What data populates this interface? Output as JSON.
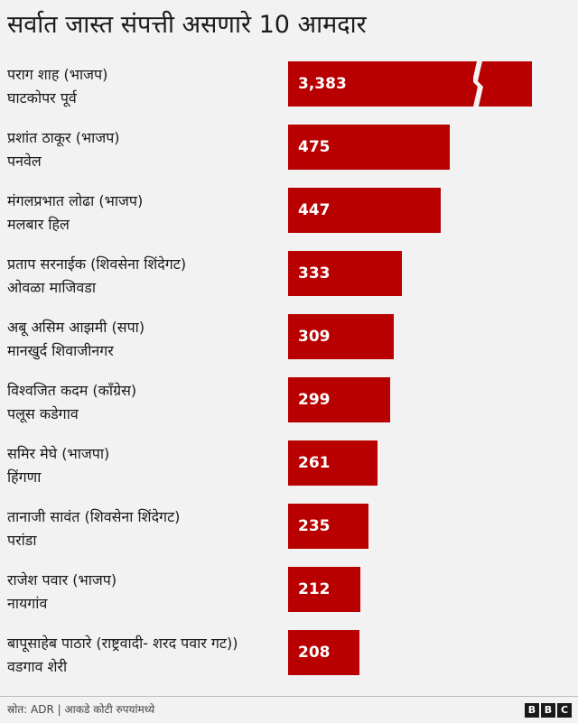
{
  "chart_data": {
    "type": "bar",
    "orientation": "horizontal",
    "title": "सर्वात जास्त संपत्ती असणारे 10 आमदार",
    "categories": [
      {
        "name": "पराग शाह (भाजप)",
        "constituency": "घाटकोपर पूर्व"
      },
      {
        "name": "प्रशांत ठाकूर (भाजप)",
        "constituency": "पनवेल"
      },
      {
        "name": "मंगलप्रभात लोढा (भाजप)",
        "constituency": "मलबार हिल"
      },
      {
        "name": "प्रताप सरनाईक (शिवसेना शिंदेगट)",
        "constituency": "ओवळा माजिवडा"
      },
      {
        "name": "अबू असिम आझमी (सपा)",
        "constituency": "मानखुर्द शिवाजीनगर"
      },
      {
        "name": "विश्वजित कदम (काँग्रेस)",
        "constituency": "पलूस कडेगाव"
      },
      {
        "name": "समिर मेघे (भाजपा)",
        "constituency": "हिंगणा"
      },
      {
        "name": "तानाजी सावंत (शिवसेना शिंदेगट)",
        "constituency": "परांडा"
      },
      {
        "name": "राजेश पवार (भाजप)",
        "constituency": "नायगांव"
      },
      {
        "name": "बापूसाहेब पाठारे (राष्ट्रवादी- शरद पवार गट))",
        "constituency": "वडगाव शेरी"
      }
    ],
    "values": [
      3383,
      475,
      447,
      333,
      309,
      299,
      261,
      235,
      212,
      208
    ],
    "value_labels": [
      "3,383",
      "475",
      "447",
      "333",
      "309",
      "299",
      "261",
      "235",
      "212",
      "208"
    ],
    "axis_break": {
      "series_index": 0
    },
    "bar_color": "#b80000",
    "xlim": [
      0,
      500
    ]
  },
  "footer": {
    "source": "स्रोत: ADR | आकडे कोटी रुपयांमध्ये",
    "logo_letters": [
      "B",
      "B",
      "C"
    ]
  }
}
